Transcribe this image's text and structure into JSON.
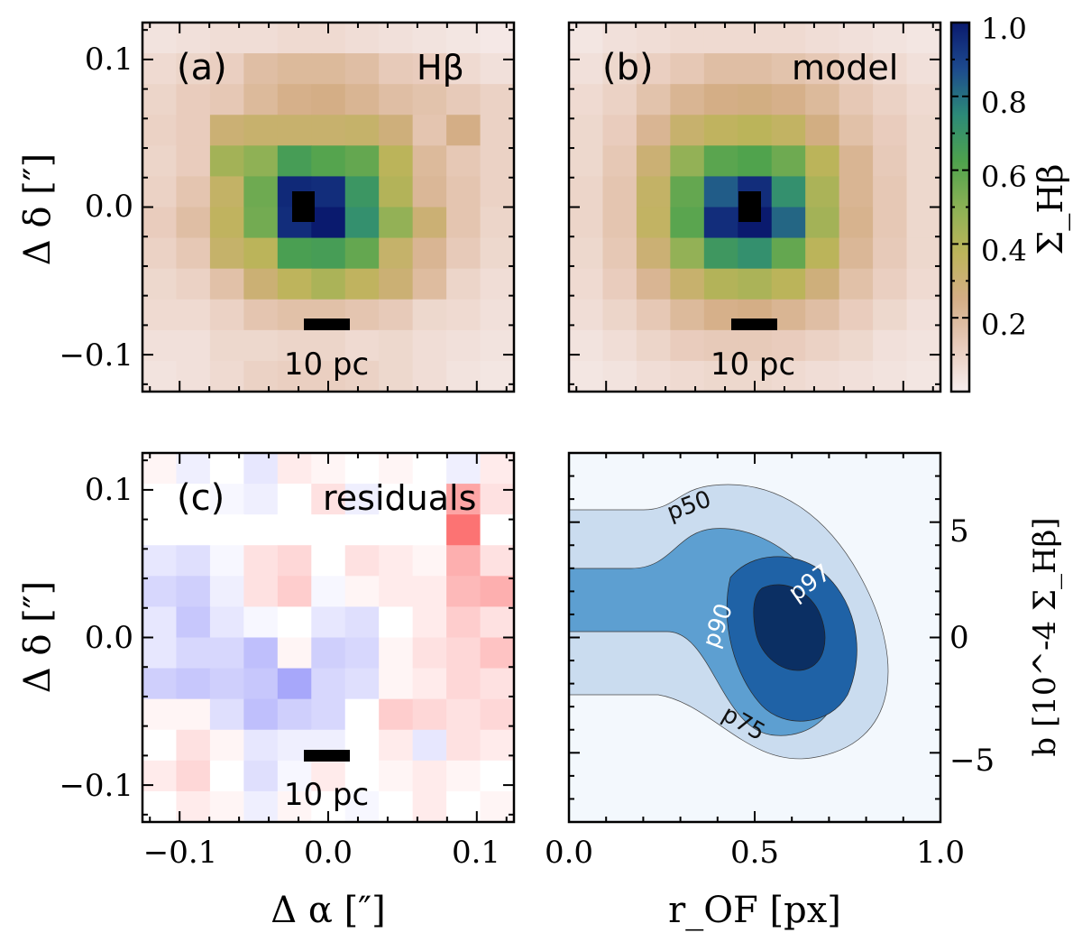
{
  "colors": {
    "hbeta_cmap": [
      "#f7eeee",
      "#e8cbbb",
      "#d4ae86",
      "#bdb45a",
      "#8bb155",
      "#4ea24d",
      "#2c8a78",
      "#1d4a8e",
      "#0a1a6e"
    ],
    "residual_neg": "#7f7ff8",
    "residual_pos": "#fb5f5f",
    "contour_levels": [
      "#f3f8fd",
      "#cadcef",
      "#5d9fd1",
      "#1f62a6",
      "#0b2f63"
    ],
    "center_pixel": "#000000"
  },
  "chart_data": [
    {
      "type": "heatmap",
      "panel_label": "(a)",
      "title": "Hβ",
      "scalebar_label": "10 pc",
      "xlim": [
        -0.125,
        0.125
      ],
      "ylim": [
        -0.125,
        0.125
      ],
      "xticks": [
        -0.1,
        0.0,
        0.1
      ],
      "yticks": [
        -0.1,
        0.0,
        0.1
      ],
      "ytick_labels": [
        "−0.1",
        "0.0",
        "0.1"
      ],
      "ylabel": "Δ δ [″]",
      "grid_values": [
        [
          0.04,
          0.05,
          0.06,
          0.06,
          0.07,
          0.07,
          0.06,
          0.05,
          0.04,
          0.03,
          0.02
        ],
        [
          0.07,
          0.09,
          0.11,
          0.18,
          0.2,
          0.2,
          0.18,
          0.13,
          0.12,
          0.07,
          0.05
        ],
        [
          0.09,
          0.12,
          0.14,
          0.2,
          0.24,
          0.25,
          0.22,
          0.18,
          0.16,
          0.13,
          0.1
        ],
        [
          0.1,
          0.12,
          0.3,
          0.32,
          0.32,
          0.32,
          0.33,
          0.28,
          0.15,
          0.25,
          0.1
        ],
        [
          0.09,
          0.12,
          0.44,
          0.49,
          0.65,
          0.61,
          0.58,
          0.38,
          0.2,
          0.14,
          0.1
        ],
        [
          0.1,
          0.15,
          0.34,
          0.56,
          0.96,
          0.95,
          0.69,
          0.4,
          0.21,
          0.15,
          0.1
        ],
        [
          0.12,
          0.18,
          0.36,
          0.55,
          0.95,
          1.0,
          0.72,
          0.48,
          0.3,
          0.15,
          0.09
        ],
        [
          0.1,
          0.14,
          0.33,
          0.38,
          0.64,
          0.65,
          0.58,
          0.33,
          0.22,
          0.13,
          0.08
        ],
        [
          0.08,
          0.1,
          0.17,
          0.3,
          0.37,
          0.42,
          0.36,
          0.3,
          0.19,
          0.09,
          0.06
        ],
        [
          0.07,
          0.07,
          0.1,
          0.15,
          0.17,
          0.17,
          0.15,
          0.13,
          0.08,
          0.07,
          0.05
        ],
        [
          0.05,
          0.05,
          0.08,
          0.08,
          0.09,
          0.09,
          0.07,
          0.08,
          0.06,
          0.05,
          0.04
        ],
        [
          0.04,
          0.05,
          0.07,
          0.1,
          0.11,
          0.11,
          0.1,
          0.08,
          0.06,
          0.04,
          0.03
        ]
      ]
    },
    {
      "type": "heatmap",
      "panel_label": "(b)",
      "title": "model",
      "scalebar_label": "10 pc",
      "xlim": [
        -0.125,
        0.125
      ],
      "ylim": [
        -0.125,
        0.125
      ],
      "xticks": [
        -0.1,
        0.0,
        0.1
      ],
      "yticks": [
        -0.1,
        0.0,
        0.1
      ],
      "colorbar": {
        "label": "Σ_Hβ",
        "range": [
          0.0,
          1.0
        ],
        "ticks": [
          0.2,
          0.4,
          0.6,
          0.8,
          1.0
        ],
        "tick_labels": [
          "0.2",
          "0.4",
          "0.6",
          "0.8",
          "1.0"
        ]
      },
      "grid_values": [
        [
          0.03,
          0.05,
          0.06,
          0.07,
          0.07,
          0.07,
          0.07,
          0.06,
          0.05,
          0.04,
          0.03
        ],
        [
          0.05,
          0.08,
          0.11,
          0.14,
          0.18,
          0.18,
          0.16,
          0.14,
          0.1,
          0.07,
          0.05
        ],
        [
          0.07,
          0.1,
          0.16,
          0.22,
          0.25,
          0.26,
          0.24,
          0.2,
          0.14,
          0.1,
          0.07
        ],
        [
          0.08,
          0.12,
          0.22,
          0.32,
          0.36,
          0.38,
          0.35,
          0.26,
          0.17,
          0.12,
          0.08
        ],
        [
          0.08,
          0.14,
          0.3,
          0.48,
          0.6,
          0.62,
          0.56,
          0.38,
          0.22,
          0.13,
          0.08
        ],
        [
          0.09,
          0.15,
          0.34,
          0.58,
          0.84,
          0.95,
          0.72,
          0.42,
          0.22,
          0.14,
          0.08
        ],
        [
          0.09,
          0.15,
          0.35,
          0.6,
          0.95,
          1.0,
          0.82,
          0.44,
          0.23,
          0.14,
          0.08
        ],
        [
          0.08,
          0.14,
          0.3,
          0.48,
          0.68,
          0.72,
          0.58,
          0.38,
          0.21,
          0.13,
          0.08
        ],
        [
          0.07,
          0.12,
          0.22,
          0.32,
          0.4,
          0.42,
          0.38,
          0.28,
          0.17,
          0.11,
          0.07
        ],
        [
          0.06,
          0.09,
          0.14,
          0.2,
          0.24,
          0.25,
          0.22,
          0.18,
          0.12,
          0.08,
          0.05
        ],
        [
          0.04,
          0.06,
          0.09,
          0.12,
          0.13,
          0.13,
          0.12,
          0.1,
          0.08,
          0.05,
          0.04
        ],
        [
          0.03,
          0.04,
          0.06,
          0.07,
          0.08,
          0.08,
          0.07,
          0.06,
          0.05,
          0.04,
          0.03
        ]
      ]
    },
    {
      "type": "heatmap",
      "panel_label": "(c)",
      "title": "residuals",
      "scalebar_label": "10 pc",
      "xlim": [
        -0.125,
        0.125
      ],
      "ylim": [
        -0.125,
        0.125
      ],
      "xticks": [
        -0.1,
        0.0,
        0.1
      ],
      "yticks": [
        -0.1,
        0.0,
        0.1
      ],
      "xtick_labels": [
        "−0.1",
        "0.0",
        "0.1"
      ],
      "ytick_labels": [
        "−0.1",
        "0.0",
        "0.1"
      ],
      "xlabel": "Δ α [″]",
      "ylabel": "Δ δ [″]",
      "grid_values": [
        [
          0.05,
          -0.1,
          0.0,
          -0.15,
          0.1,
          0.05,
          0.0,
          0.05,
          0.0,
          -0.1,
          0.1
        ],
        [
          0.0,
          0.0,
          -0.05,
          -0.1,
          0.0,
          0.15,
          -0.1,
          0.0,
          0.0,
          0.45,
          0.15
        ],
        [
          0.0,
          0.0,
          0.0,
          0.0,
          0.0,
          0.0,
          0.0,
          0.0,
          0.0,
          0.7,
          0.0
        ],
        [
          -0.15,
          -0.2,
          -0.05,
          0.15,
          0.2,
          0.0,
          0.15,
          0.1,
          0.05,
          0.4,
          0.15
        ],
        [
          -0.25,
          -0.3,
          -0.1,
          0.15,
          0.25,
          -0.05,
          0.05,
          0.1,
          0.1,
          0.35,
          0.4
        ],
        [
          -0.15,
          -0.35,
          -0.15,
          -0.05,
          0.0,
          -0.15,
          -0.2,
          0.0,
          0.1,
          0.25,
          0.15
        ],
        [
          -0.15,
          -0.25,
          -0.25,
          -0.4,
          0.05,
          -0.3,
          -0.25,
          0.05,
          0.15,
          0.2,
          0.3
        ],
        [
          -0.3,
          -0.35,
          -0.3,
          -0.35,
          -0.55,
          -0.25,
          -0.2,
          0.05,
          0.1,
          0.2,
          0.15
        ],
        [
          0.05,
          0.05,
          -0.2,
          -0.4,
          -0.3,
          -0.25,
          0.0,
          0.25,
          0.2,
          0.15,
          0.2
        ],
        [
          0.0,
          0.15,
          0.05,
          -0.15,
          -0.1,
          -0.1,
          0.0,
          0.1,
          -0.15,
          0.15,
          0.1
        ],
        [
          0.1,
          0.2,
          0.0,
          -0.2,
          -0.05,
          0.1,
          0.0,
          0.05,
          0.1,
          0.05,
          0.0
        ],
        [
          0.0,
          0.1,
          0.05,
          -0.1,
          0.05,
          0.0,
          -0.05,
          0.0,
          0.1,
          0.0,
          0.05
        ]
      ]
    },
    {
      "type": "contour",
      "xlabel": "r_OF [px]",
      "ylabel": "b [10^-4 Σ_Hβ]",
      "xlim": [
        0.0,
        1.0
      ],
      "ylim": [
        -8.0,
        8.0
      ],
      "xticks": [
        0.0,
        0.5,
        1.0
      ],
      "xtick_labels": [
        "0.0",
        "0.5",
        "1.0"
      ],
      "yticks": [
        -5,
        0,
        5
      ],
      "ytick_labels": [
        "−5",
        "0",
        "5"
      ],
      "levels": [
        "p50",
        "p75",
        "p90",
        "p97"
      ],
      "contour_labels": [
        {
          "text": "p50",
          "x": 0.33,
          "y": 5.4,
          "angle": -20
        },
        {
          "text": "p75",
          "x": 0.46,
          "y": -4.0,
          "angle": 30
        },
        {
          "text": "p90",
          "x": 0.42,
          "y": 0.4,
          "angle": -70
        },
        {
          "text": "p97",
          "x": 0.66,
          "y": 2.1,
          "angle": -35
        }
      ],
      "peak": {
        "x": 0.6,
        "y": 0.2
      }
    }
  ]
}
